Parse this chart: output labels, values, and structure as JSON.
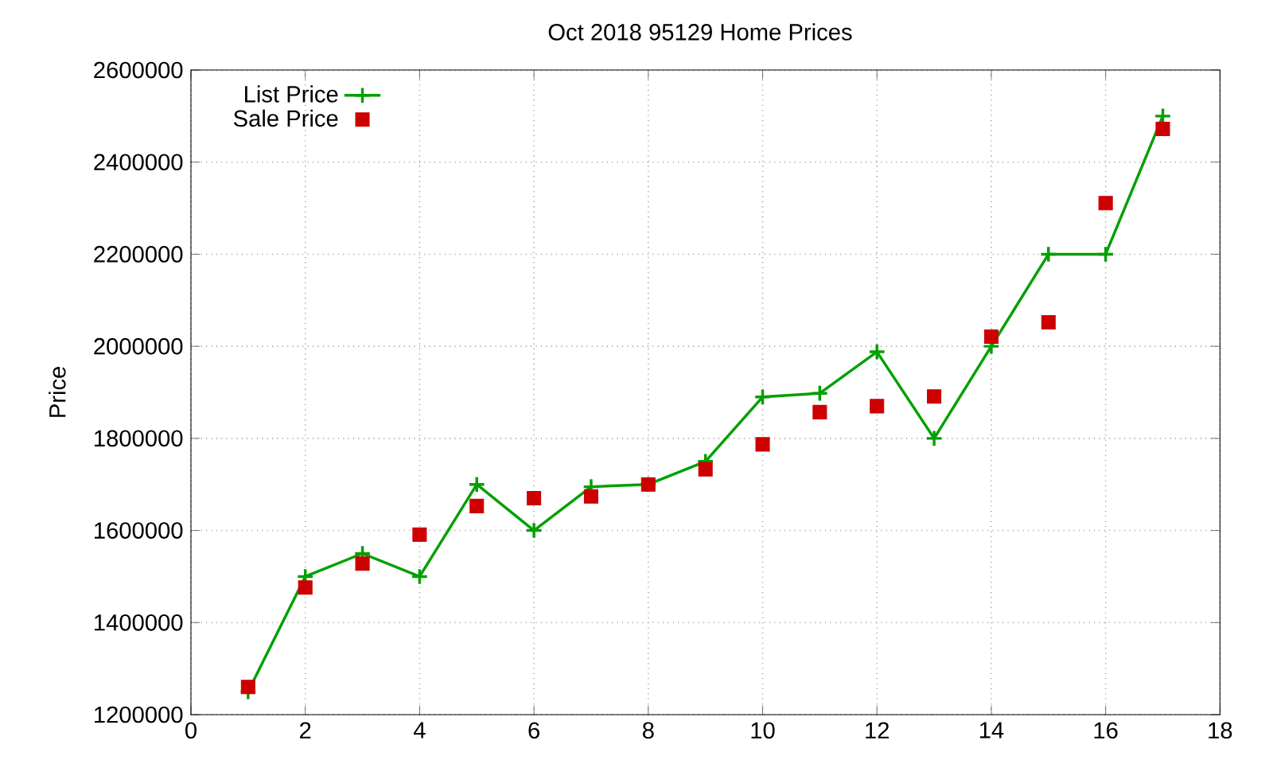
{
  "chart_data": {
    "type": "line",
    "title": "Oct 2018 95129 Home Prices",
    "ylabel": "Price",
    "x": [
      1,
      2,
      3,
      4,
      5,
      6,
      7,
      8,
      9,
      10,
      11,
      12,
      13,
      14,
      15,
      16,
      17
    ],
    "series": [
      {
        "name": "List Price",
        "color": "#00a000",
        "marker": "cross",
        "values": [
          1250000,
          1500000,
          1550000,
          1500000,
          1700000,
          1600000,
          1695000,
          1700000,
          1750000,
          1890000,
          1898000,
          1988000,
          1800000,
          2000000,
          2200000,
          2200000,
          2500000
        ]
      },
      {
        "name": "Sale Price",
        "type": "scatter",
        "color": "#cc0000",
        "marker": "square",
        "values": [
          1260000,
          1476000,
          1528000,
          1591000,
          1653000,
          1670000,
          1674000,
          1700000,
          1733000,
          1787000,
          1857000,
          1870000,
          1891000,
          2021000,
          2052000,
          2311000,
          2472000
        ]
      }
    ],
    "xlim": [
      0,
      18
    ],
    "xticks": [
      0,
      2,
      4,
      6,
      8,
      10,
      12,
      14,
      16,
      18
    ],
    "ylim": [
      1200000,
      2600000
    ],
    "yticks": [
      1200000,
      1400000,
      1600000,
      1800000,
      2000000,
      2200000,
      2400000,
      2600000
    ],
    "grid": true,
    "legend": "top left"
  }
}
